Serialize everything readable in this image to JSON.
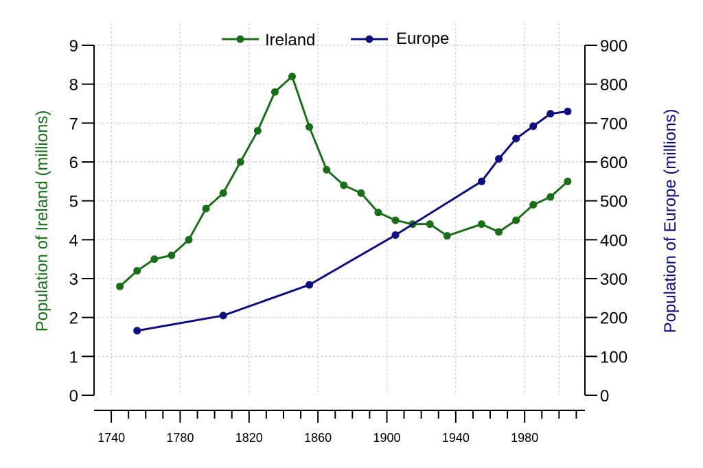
{
  "chart_data": {
    "type": "line",
    "y_left_label": "Population of Ireland (millions)",
    "y_right_label": "Population of Europe (millions)",
    "y_left_ticks": [
      "0",
      "1",
      "2",
      "3",
      "4",
      "5",
      "6",
      "7",
      "8",
      "9"
    ],
    "y_right_ticks": [
      "0",
      "100",
      "200",
      "300",
      "400",
      "500",
      "600",
      "700",
      "800",
      "900"
    ],
    "x_ticks": [
      "1740",
      "1780",
      "1820",
      "1860",
      "1900",
      "1940",
      "1980"
    ],
    "xlim": [
      1730,
      2015
    ],
    "ylim_left": [
      0,
      9
    ],
    "ylim_right": [
      0,
      900
    ],
    "grid": true,
    "legend_position": "top",
    "series": [
      {
        "name": "Ireland",
        "axis": "left",
        "color": "#1a6e1a",
        "x": [
          1745,
          1755,
          1765,
          1775,
          1785,
          1795,
          1805,
          1815,
          1825,
          1835,
          1845,
          1855,
          1865,
          1875,
          1885,
          1895,
          1905,
          1915,
          1925,
          1935,
          1955,
          1965,
          1975,
          1985,
          1995,
          2005
        ],
        "values": [
          2.8,
          3.2,
          3.5,
          3.6,
          4.0,
          4.8,
          5.2,
          6.0,
          6.8,
          7.8,
          8.2,
          6.9,
          5.8,
          5.4,
          5.2,
          4.7,
          4.5,
          4.4,
          4.4,
          4.1,
          4.4,
          4.2,
          4.5,
          4.9,
          5.1,
          5.5
        ]
      },
      {
        "name": "Europe",
        "axis": "right",
        "color": "#0d0d80",
        "x": [
          1755,
          1805,
          1855,
          1905,
          1955,
          1965,
          1975,
          1985,
          1995,
          2005
        ],
        "values": [
          166,
          205,
          284,
          412,
          550,
          608,
          660,
          692,
          724,
          730
        ]
      }
    ]
  }
}
